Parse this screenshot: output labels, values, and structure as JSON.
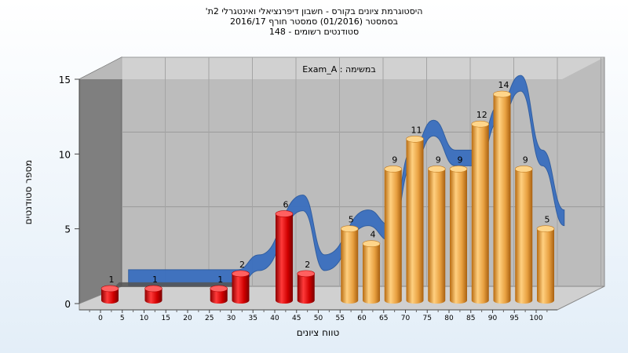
{
  "title": {
    "line1": "היסטוגרמת ציונים בקורס - חשבון דיפרנציאלי ואינטגרלי 2ת'",
    "line2": "בסמסטר  (01/2016)  סמסטר חורף  2016/17",
    "line3": "סטודנטים רשומים - 148"
  },
  "chart_data": {
    "type": "bar",
    "subtitle": "במשימה : Exam_A",
    "xlabel": "טווח ציונים",
    "ylabel": "מספר סטודנטים",
    "ylim": [
      0,
      15
    ],
    "y_ticks": [
      "0",
      "5",
      "10",
      "15"
    ],
    "x_ticks": [
      "0",
      "5",
      "10",
      "15",
      "20",
      "25",
      "30",
      "35",
      "40",
      "45",
      "50",
      "55",
      "60",
      "65",
      "70",
      "75",
      "80",
      "85",
      "90",
      "95",
      "100"
    ],
    "bars": [
      {
        "x": 0,
        "value": 1,
        "group": "fail"
      },
      {
        "x": 10,
        "value": 1,
        "group": "fail"
      },
      {
        "x": 25,
        "value": 1,
        "group": "fail"
      },
      {
        "x": 30,
        "value": 2,
        "group": "fail"
      },
      {
        "x": 40,
        "value": 6,
        "group": "fail"
      },
      {
        "x": 45,
        "value": 2,
        "group": "fail"
      },
      {
        "x": 55,
        "value": 5,
        "group": "pass"
      },
      {
        "x": 60,
        "value": 4,
        "group": "pass"
      },
      {
        "x": 65,
        "value": 9,
        "group": "pass"
      },
      {
        "x": 70,
        "value": 11,
        "group": "pass"
      },
      {
        "x": 75,
        "value": 9,
        "group": "pass"
      },
      {
        "x": 80,
        "value": 9,
        "group": "pass"
      },
      {
        "x": 85,
        "value": 12,
        "group": "pass"
      },
      {
        "x": 90,
        "value": 14,
        "group": "pass"
      },
      {
        "x": 95,
        "value": 9,
        "group": "pass"
      },
      {
        "x": 100,
        "value": 5,
        "group": "pass"
      }
    ],
    "trend_line": {
      "color": "#3a6fbf",
      "points": [
        [
          5,
          1
        ],
        [
          15,
          1
        ],
        [
          30,
          1
        ],
        [
          35,
          2
        ],
        [
          45,
          6
        ],
        [
          50,
          2
        ],
        [
          60,
          5
        ],
        [
          65,
          4
        ],
        [
          70,
          9
        ],
        [
          75,
          11
        ],
        [
          80,
          9
        ],
        [
          85,
          9
        ],
        [
          90,
          12
        ],
        [
          95,
          14
        ],
        [
          100,
          9
        ],
        [
          105,
          5
        ]
      ]
    },
    "colors": {
      "fail": "#e01414",
      "pass": "#f0a030",
      "wall": "#b8b8b8",
      "side_wall": "#8a8a8a",
      "floor": "#d8d8d8"
    },
    "grid": true
  }
}
